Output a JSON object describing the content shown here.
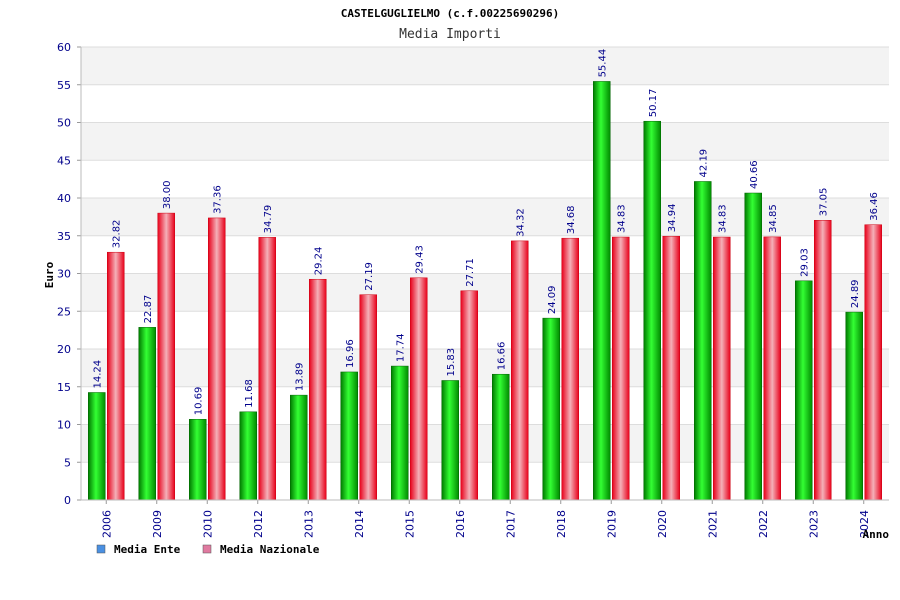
{
  "chart_data": {
    "type": "bar",
    "title": "CASTELGUGLIELMO (c.f.00225690296)",
    "subtitle": "Media Importi",
    "xlabel": "Anno",
    "ylabel": "Euro",
    "ylim": [
      0,
      60
    ],
    "yticks": [
      0,
      5,
      10,
      15,
      20,
      25,
      30,
      35,
      40,
      45,
      50,
      55,
      60
    ],
    "grid": true,
    "legend_position": "bottom-left",
    "categories": [
      "2006",
      "2009",
      "2010",
      "2012",
      "2013",
      "2014",
      "2015",
      "2016",
      "2017",
      "2018",
      "2019",
      "2020",
      "2021",
      "2022",
      "2023",
      "2024"
    ],
    "series": [
      {
        "name": "Media Ente",
        "color": "#00c000",
        "legend_color": "#4a90e2",
        "values": [
          14.24,
          22.87,
          10.69,
          11.68,
          13.89,
          16.96,
          17.74,
          15.83,
          16.66,
          24.09,
          55.44,
          50.17,
          42.19,
          40.66,
          29.03,
          24.89
        ],
        "labels": [
          "14.24",
          "22.87",
          "10.69",
          "11.68",
          "13.89",
          "16.96",
          "17.74",
          "15.83",
          "16.66",
          "24.09",
          "55.44",
          "50.17",
          "42.19",
          "40.66",
          "29.03",
          "24.89"
        ]
      },
      {
        "name": "Media Nazionale",
        "color": "#e8101e",
        "legend_color": "#e07aa0",
        "values": [
          32.82,
          38.0,
          37.36,
          34.79,
          29.24,
          27.19,
          29.43,
          27.71,
          34.32,
          34.68,
          34.83,
          34.94,
          34.83,
          34.85,
          37.05,
          36.46
        ],
        "labels": [
          "32.82",
          "38.00",
          "37.36",
          "34.79",
          "29.24",
          "27.19",
          "29.43",
          "27.71",
          "34.32",
          "34.68",
          "34.83",
          "34.94",
          "34.83",
          "34.85",
          "37.05",
          "36.46"
        ]
      }
    ]
  }
}
